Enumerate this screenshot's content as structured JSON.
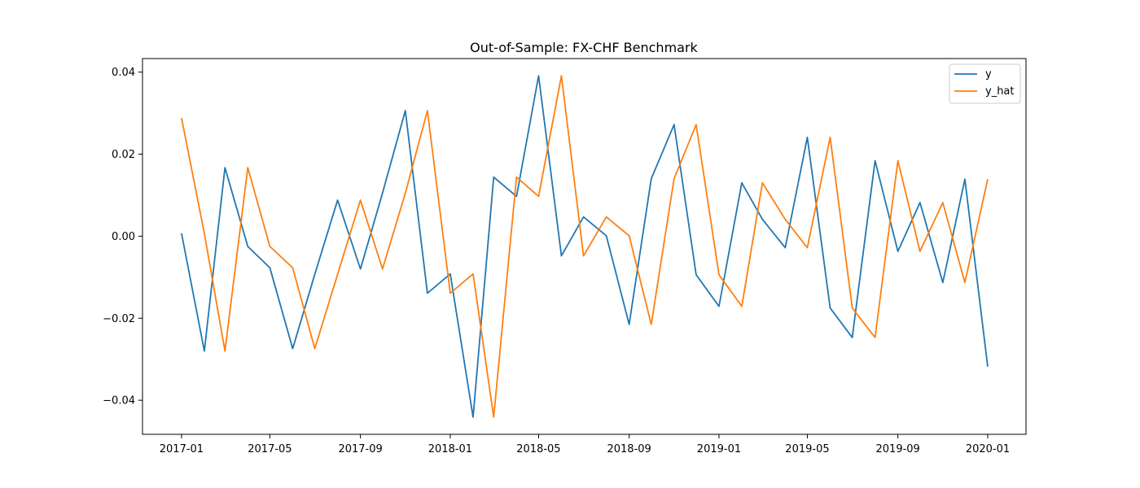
{
  "chart_data": {
    "type": "line",
    "title": "Out-of-Sample: FX-CHF Benchmark",
    "xlabel": "",
    "ylabel": "",
    "x": [
      "2017-01",
      "2017-02",
      "2017-03",
      "2017-04",
      "2017-05",
      "2017-06",
      "2017-07",
      "2017-08",
      "2017-09",
      "2017-10",
      "2017-11",
      "2017-12",
      "2018-01",
      "2018-02",
      "2018-03",
      "2018-04",
      "2018-05",
      "2018-06",
      "2018-07",
      "2018-08",
      "2018-09",
      "2018-10",
      "2018-11",
      "2018-12",
      "2019-01",
      "2019-02",
      "2019-03",
      "2019-04",
      "2019-05",
      "2019-06",
      "2019-07",
      "2019-08",
      "2019-09",
      "2019-10",
      "2019-11",
      "2019-12",
      "2020-01"
    ],
    "series": [
      {
        "name": "y",
        "color": "#1f77b4",
        "values": [
          0.0007,
          -0.028,
          0.0167,
          -0.0025,
          -0.0077,
          -0.0274,
          -0.0093,
          0.0088,
          -0.008,
          0.0105,
          0.0306,
          -0.0139,
          -0.0092,
          -0.0441,
          0.0144,
          0.0097,
          0.0391,
          -0.0048,
          0.0047,
          0.0001,
          -0.0215,
          0.014,
          0.0272,
          -0.0094,
          -0.0171,
          0.013,
          0.0041,
          -0.0028,
          0.0241,
          -0.0175,
          -0.0247,
          0.0184,
          -0.0037,
          0.0082,
          -0.0113,
          0.0139,
          -0.0318
        ]
      },
      {
        "name": "y_hat",
        "color": "#ff7f0e",
        "values": [
          0.0288,
          0.0007,
          -0.028,
          0.0167,
          -0.0025,
          -0.0077,
          -0.0274,
          -0.0093,
          0.0088,
          -0.008,
          0.0105,
          0.0306,
          -0.0139,
          -0.0092,
          -0.0441,
          0.0144,
          0.0097,
          0.0391,
          -0.0048,
          0.0047,
          0.0001,
          -0.0215,
          0.014,
          0.0272,
          -0.0094,
          -0.0171,
          0.013,
          0.0041,
          -0.0028,
          0.0241,
          -0.0175,
          -0.0247,
          0.0184,
          -0.0037,
          0.0082,
          -0.0113,
          0.0139
        ]
      }
    ],
    "xlim": [
      "2016-11-09",
      "2020-02-22"
    ],
    "ylim": [
      -0.0483,
      0.0433
    ],
    "xticks": [
      "2017-01",
      "2017-05",
      "2017-09",
      "2018-01",
      "2018-05",
      "2018-09",
      "2019-01",
      "2019-05",
      "2019-09",
      "2020-01"
    ],
    "yticks": [
      {
        "value": 0.04,
        "label": "0.04"
      },
      {
        "value": 0.02,
        "label": "0.02"
      },
      {
        "value": 0.0,
        "label": "0.00"
      },
      {
        "value": -0.02,
        "label": "−0.02"
      },
      {
        "value": -0.04,
        "label": "−0.04"
      }
    ],
    "grid": false,
    "legend": "top-right"
  }
}
